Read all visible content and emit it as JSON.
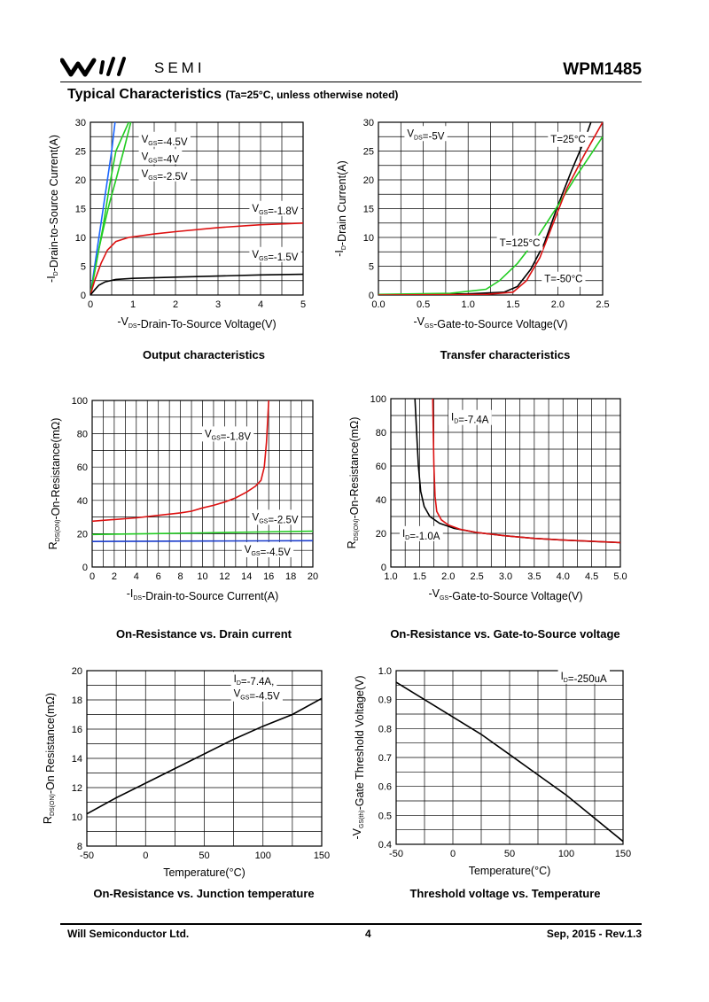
{
  "header": {
    "logo_text": "SEMI",
    "part_number": "WPM1485",
    "section_title": "Typical Characteristics",
    "section_condition": "(Ta=25°C, unless otherwise noted)"
  },
  "footer": {
    "company": "Will Semiconductor Ltd.",
    "page": "4",
    "revision": "Sep, 2015 - Rev.1.3"
  },
  "chart_data": [
    {
      "type": "line",
      "title": "Output characteristics",
      "xlabel": "-VDS-Drain-To-Source Voltage(V)",
      "ylabel": "-ID-Drain-to-Source Current(A)",
      "xlim": [
        0,
        5
      ],
      "ylim": [
        0,
        30
      ],
      "xticks": [
        0,
        1,
        2,
        3,
        4,
        5
      ],
      "yticks": [
        0,
        5,
        10,
        15,
        20,
        25,
        30
      ],
      "series": [
        {
          "name": "VGS=-4.5V",
          "color": "#1a66ff",
          "points": [
            [
              0,
              0
            ],
            [
              0.1,
              5
            ],
            [
              0.2,
              10
            ],
            [
              0.3,
              15
            ],
            [
              0.4,
              20
            ],
            [
              0.5,
              25
            ],
            [
              0.58,
              30
            ]
          ]
        },
        {
          "name": "VGS=-4V",
          "color": "#22cc22",
          "points": [
            [
              0,
              0
            ],
            [
              0.15,
              6
            ],
            [
              0.3,
              12
            ],
            [
              0.45,
              19
            ],
            [
              0.6,
              25
            ],
            [
              0.9,
              30
            ]
          ]
        },
        {
          "name": "VGS=-2.5V",
          "color": "#22cc22",
          "points": [
            [
              0,
              0
            ],
            [
              0.1,
              4
            ],
            [
              0.2,
              8
            ],
            [
              0.32,
              12
            ],
            [
              0.45,
              16
            ],
            [
              0.6,
              20
            ],
            [
              0.78,
              25
            ],
            [
              0.95,
              30
            ]
          ]
        },
        {
          "name": "VGS=-1.8V",
          "color": "#dd1111",
          "points": [
            [
              0,
              0
            ],
            [
              0.1,
              2.5
            ],
            [
              0.25,
              5.5
            ],
            [
              0.4,
              7.8
            ],
            [
              0.6,
              9.3
            ],
            [
              0.9,
              10
            ],
            [
              1.5,
              10.6
            ],
            [
              2,
              11
            ],
            [
              3,
              11.7
            ],
            [
              4,
              12.2
            ],
            [
              5,
              12.5
            ]
          ]
        },
        {
          "name": "VGS=-1.5V",
          "color": "#000000",
          "points": [
            [
              0,
              0
            ],
            [
              0.1,
              0.9
            ],
            [
              0.2,
              1.7
            ],
            [
              0.35,
              2.3
            ],
            [
              0.6,
              2.7
            ],
            [
              1,
              2.9
            ],
            [
              2,
              3.1
            ],
            [
              3,
              3.3
            ],
            [
              4,
              3.5
            ],
            [
              5,
              3.6
            ]
          ]
        }
      ],
      "annotations": [
        {
          "label": "VGS=-4.5V",
          "x": 1.2,
          "y": 26.5
        },
        {
          "label": "VGS=-4V",
          "x": 1.2,
          "y": 23.5
        },
        {
          "label": "VGS=-2.5V",
          "x": 1.2,
          "y": 20.5
        },
        {
          "label": "VGS=-1.8V",
          "x": 3.8,
          "y": 14.5
        },
        {
          "label": "VGS=-1.5V",
          "x": 3.8,
          "y": 6.5
        }
      ]
    },
    {
      "type": "line",
      "title": "Transfer characteristics",
      "xlabel": "-VGS-Gate-to-Source Voltage(V)",
      "ylabel": "-ID-Drain Current(A)",
      "xlim": [
        0,
        2.5
      ],
      "ylim": [
        0,
        30
      ],
      "xticks": [
        0.0,
        0.5,
        1.0,
        1.5,
        2.0,
        2.5
      ],
      "yticks": [
        0,
        5,
        10,
        15,
        20,
        25,
        30
      ],
      "series": [
        {
          "name": "T=25°C",
          "color": "#000000",
          "points": [
            [
              0,
              0
            ],
            [
              1,
              0.2
            ],
            [
              1.4,
              0.5
            ],
            [
              1.55,
              1.5
            ],
            [
              1.7,
              4.5
            ],
            [
              1.85,
              9
            ],
            [
              2,
              15.5
            ],
            [
              2.15,
              21.5
            ],
            [
              2.3,
              27
            ],
            [
              2.37,
              30
            ]
          ]
        },
        {
          "name": "T=125°C",
          "color": "#22cc22",
          "points": [
            [
              0,
              0.1
            ],
            [
              0.8,
              0.3
            ],
            [
              1.2,
              1
            ],
            [
              1.35,
              2.5
            ],
            [
              1.55,
              5.5
            ],
            [
              1.75,
              9.5
            ],
            [
              2,
              15.5
            ],
            [
              2.2,
              20.5
            ],
            [
              2.5,
              27.5
            ]
          ]
        },
        {
          "name": "T=-50°C",
          "color": "#dd1111",
          "points": [
            [
              0,
              0
            ],
            [
              1.2,
              0.1
            ],
            [
              1.5,
              0.5
            ],
            [
              1.65,
              2.5
            ],
            [
              1.8,
              6.5
            ],
            [
              1.95,
              12.5
            ],
            [
              2.1,
              18.5
            ],
            [
              2.3,
              24.5
            ],
            [
              2.5,
              30
            ]
          ]
        }
      ],
      "annotations": [
        {
          "label": "VDS=-5V",
          "x": 0.32,
          "y": 27.5
        },
        {
          "label": "T=25°C",
          "x": 1.92,
          "y": 26.5
        },
        {
          "label": "T=125°C",
          "x": 1.35,
          "y": 8.5
        },
        {
          "label": "T=-50°C",
          "x": 1.85,
          "y": 2.2
        }
      ]
    },
    {
      "type": "line",
      "title": "On-Resistance vs. Drain current",
      "xlabel": "-IDS-Drain-to-Source Current(A)",
      "ylabel": "RDS(ON)-On-Resistance(mΩ)",
      "xlim": [
        0,
        20
      ],
      "ylim": [
        0,
        100
      ],
      "xticks": [
        0,
        2,
        4,
        6,
        8,
        10,
        12,
        14,
        16,
        18,
        20
      ],
      "yticks": [
        0,
        20,
        40,
        60,
        80,
        100
      ],
      "series": [
        {
          "name": "VGS=-1.8V",
          "color": "#dd1111",
          "points": [
            [
              0,
              27.5
            ],
            [
              2,
              28.5
            ],
            [
              4,
              29.5
            ],
            [
              6,
              31
            ],
            [
              8,
              32.5
            ],
            [
              9,
              33.5
            ],
            [
              10,
              35.5
            ],
            [
              11,
              37
            ],
            [
              12,
              39
            ],
            [
              13,
              41.5
            ],
            [
              14,
              45
            ],
            [
              14.8,
              48.5
            ],
            [
              15.3,
              52
            ],
            [
              15.6,
              60
            ],
            [
              15.8,
              75
            ],
            [
              16,
              100
            ]
          ]
        },
        {
          "name": "VGS=-2.5V",
          "color": "#22cc22",
          "points": [
            [
              0,
              19.5
            ],
            [
              5,
              20
            ],
            [
              10,
              20.5
            ],
            [
              15,
              21
            ],
            [
              20,
              21.5
            ]
          ]
        },
        {
          "name": "VGS=-4.5V",
          "color": "#1a3ccc",
          "points": [
            [
              0,
              15.3
            ],
            [
              5,
              15.5
            ],
            [
              10,
              15.6
            ],
            [
              15,
              15.7
            ],
            [
              20,
              15.8
            ]
          ]
        }
      ],
      "annotations": [
        {
          "label": "VGS=-1.8V",
          "x": 10.2,
          "y": 78
        },
        {
          "label": "VGS=-2.5V",
          "x": 14.5,
          "y": 28
        },
        {
          "label": "VGS=-4.5V",
          "x": 13.8,
          "y": 8.5
        }
      ]
    },
    {
      "type": "line",
      "title": "On-Resistance vs. Gate-to-Source voltage",
      "xlabel": "-VGS-Gate-to-Source Voltage(V)",
      "ylabel": "RDS(ON)-On-Resistance(mΩ)",
      "xlim": [
        1.0,
        5.0
      ],
      "ylim": [
        0,
        100
      ],
      "xticks": [
        1.0,
        1.5,
        2.0,
        2.5,
        3.0,
        3.5,
        4.0,
        4.5,
        5.0
      ],
      "yticks": [
        0,
        20,
        40,
        60,
        80,
        100
      ],
      "series": [
        {
          "name": "ID=-1.0A",
          "color": "#000000",
          "points": [
            [
              1.42,
              100
            ],
            [
              1.45,
              80
            ],
            [
              1.48,
              60
            ],
            [
              1.52,
              45
            ],
            [
              1.58,
              36
            ],
            [
              1.68,
              30
            ],
            [
              1.85,
              26
            ],
            [
              2.1,
              23
            ],
            [
              2.5,
              20.5
            ],
            [
              3,
              18.5
            ],
            [
              3.5,
              17
            ],
            [
              4,
              16
            ],
            [
              4.5,
              15.2
            ],
            [
              5,
              14.5
            ]
          ]
        },
        {
          "name": "ID=-7.4A",
          "color": "#dd1111",
          "points": [
            [
              1.73,
              100
            ],
            [
              1.74,
              80
            ],
            [
              1.75,
              60
            ],
            [
              1.77,
              42
            ],
            [
              1.8,
              33
            ],
            [
              1.88,
              28
            ],
            [
              2,
              25
            ],
            [
              2.2,
              22.5
            ],
            [
              2.5,
              20.5
            ],
            [
              3,
              18.5
            ],
            [
              3.5,
              17
            ],
            [
              4,
              16
            ],
            [
              4.5,
              15.3
            ],
            [
              5,
              14.5
            ]
          ]
        }
      ],
      "annotations": [
        {
          "label": "ID=-7.4A",
          "x": 2.05,
          "y": 87
        },
        {
          "label": "ID=-1.0A",
          "x": 1.2,
          "y": 18
        }
      ]
    },
    {
      "type": "line",
      "title": "On-Resistance vs. Junction temperature",
      "xlabel": "Temperature(°C)",
      "ylabel": "RDS(ON)-On Resistance(mΩ)",
      "xlim": [
        -50,
        150
      ],
      "ylim": [
        8,
        20
      ],
      "xticks": [
        -50,
        0,
        50,
        100,
        150
      ],
      "yticks": [
        8,
        10,
        12,
        14,
        16,
        18,
        20
      ],
      "series": [
        {
          "name": "ID=-7.4A, VGS=-4.5V",
          "color": "#000000",
          "points": [
            [
              -50,
              10.2
            ],
            [
              -25,
              11.3
            ],
            [
              0,
              12.3
            ],
            [
              25,
              13.3
            ],
            [
              50,
              14.3
            ],
            [
              75,
              15.3
            ],
            [
              100,
              16.2
            ],
            [
              125,
              17
            ],
            [
              150,
              18.1
            ]
          ]
        }
      ],
      "annotations": [
        {
          "label": "ID=-7.4A,",
          "x": 75,
          "y": 19.2
        },
        {
          "label": "VGS=-4.5V",
          "x": 75,
          "y": 18.2
        }
      ]
    },
    {
      "type": "line",
      "title": "Threshold voltage vs. Temperature",
      "xlabel": "Temperature(°C)",
      "ylabel": "-VGS(th)-Gate Threshold Voltage(V)",
      "xlim": [
        -50,
        150
      ],
      "ylim": [
        0.4,
        1.0
      ],
      "xticks": [
        -50,
        0,
        50,
        100,
        150
      ],
      "yticks": [
        0.4,
        0.5,
        0.6,
        0.7,
        0.8,
        0.9,
        1.0
      ],
      "series": [
        {
          "name": "ID=-250uA",
          "color": "#000000",
          "points": [
            [
              -50,
              0.96
            ],
            [
              -25,
              0.9
            ],
            [
              0,
              0.84
            ],
            [
              25,
              0.78
            ],
            [
              50,
              0.71
            ],
            [
              75,
              0.64
            ],
            [
              100,
              0.57
            ],
            [
              125,
              0.49
            ],
            [
              150,
              0.41
            ]
          ]
        }
      ],
      "annotations": [
        {
          "label": "ID=-250uA",
          "x": 95,
          "y": 0.97
        }
      ]
    }
  ]
}
